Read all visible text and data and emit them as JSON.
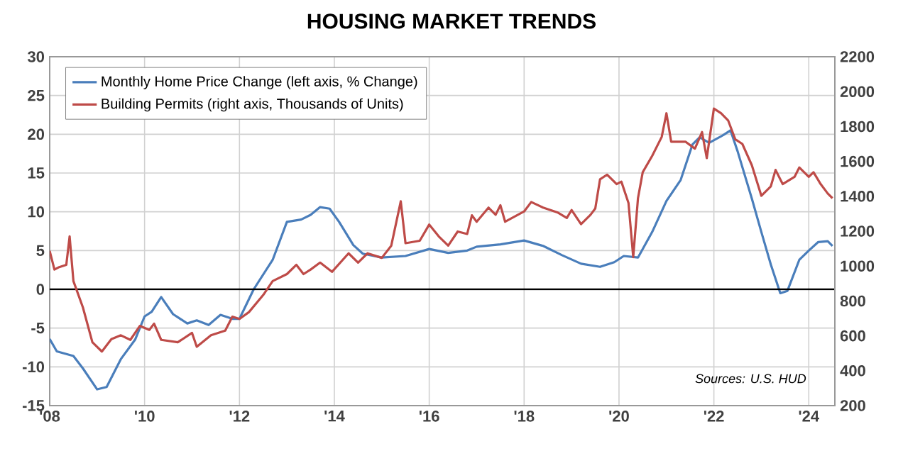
{
  "chart_data": {
    "type": "line",
    "title": "HOUSING MARKET TRENDS",
    "xlim": [
      2008,
      2024.55
    ],
    "xticks": [
      {
        "value": 2008,
        "label": "'08"
      },
      {
        "value": 2010,
        "label": "'10"
      },
      {
        "value": 2012,
        "label": "'12"
      },
      {
        "value": 2014,
        "label": "'14"
      },
      {
        "value": 2016,
        "label": "'16"
      },
      {
        "value": 2018,
        "label": "'18"
      },
      {
        "value": 2020,
        "label": "'20"
      },
      {
        "value": 2022,
        "label": "'22"
      },
      {
        "value": 2024,
        "label": "'24"
      }
    ],
    "ylim": [
      -15,
      30
    ],
    "yticks": [
      -15,
      -10,
      -5,
      0,
      5,
      10,
      15,
      20,
      25,
      30
    ],
    "y2lim": [
      200,
      2200
    ],
    "y2ticks": [
      200,
      400,
      600,
      800,
      1000,
      1200,
      1400,
      1600,
      1800,
      2000,
      2200
    ],
    "grid": true,
    "legend": "top left",
    "ref_lines": [
      {
        "axis": "y",
        "value": 0,
        "color": "#000000"
      }
    ],
    "annotations": [
      "Sources: U.S. HUD"
    ],
    "series": [
      {
        "name": "Monthly Home Price Change (left axis, % Change)",
        "color": "#4a7ebb",
        "x": [
          2008.0,
          2008.15,
          2008.5,
          2008.7,
          2009.0,
          2009.2,
          2009.5,
          2009.8,
          2010.0,
          2010.15,
          2010.35,
          2010.6,
          2010.9,
          2011.1,
          2011.35,
          2011.6,
          2011.85,
          2012.0,
          2012.3,
          2012.7,
          2013.0,
          2013.3,
          2013.5,
          2013.7,
          2013.9,
          2014.1,
          2014.4,
          2014.6,
          2015.0,
          2015.5,
          2016.0,
          2016.4,
          2016.8,
          2017.0,
          2017.5,
          2018.0,
          2018.4,
          2018.8,
          2019.2,
          2019.6,
          2019.9,
          2020.1,
          2020.4,
          2020.7,
          2021.0,
          2021.3,
          2021.55,
          2021.7,
          2021.9,
          2022.2,
          2022.35,
          2022.5,
          2022.8,
          2023.0,
          2023.2,
          2023.4,
          2023.55,
          2023.8,
          2024.0,
          2024.2,
          2024.4,
          2024.5
        ],
        "values": [
          -6.4,
          -8,
          -8.6,
          -10.2,
          -12.9,
          -12.6,
          -9,
          -6.5,
          -3.5,
          -2.9,
          -1,
          -3.2,
          -4.4,
          -4,
          -4.6,
          -3.3,
          -3.8,
          -3.8,
          0,
          3.8,
          8.7,
          9,
          9.6,
          10.6,
          10.4,
          8.7,
          5.7,
          4.6,
          4.1,
          4.3,
          5.2,
          4.7,
          5,
          5.5,
          5.8,
          6.3,
          5.6,
          4.4,
          3.3,
          2.9,
          3.5,
          4.3,
          4.1,
          7.4,
          11.4,
          14.1,
          18.7,
          19.6,
          18.9,
          19.9,
          20.5,
          17.8,
          11.7,
          7.4,
          3.2,
          -0.5,
          -0.2,
          3.8,
          5,
          6.1,
          6.2,
          5.6
        ]
      },
      {
        "name": "Building Permits (right axis, Thousands of Units)",
        "color": "#be4b48",
        "axis": "y2",
        "x": [
          2008.0,
          2008.1,
          2008.2,
          2008.35,
          2008.42,
          2008.5,
          2008.7,
          2008.9,
          2009.1,
          2009.3,
          2009.5,
          2009.7,
          2009.9,
          2010.1,
          2010.2,
          2010.35,
          2010.7,
          2011.0,
          2011.1,
          2011.4,
          2011.7,
          2011.85,
          2012.0,
          2012.2,
          2012.5,
          2012.7,
          2013.0,
          2013.2,
          2013.35,
          2013.5,
          2013.7,
          2013.95,
          2014.3,
          2014.5,
          2014.7,
          2015.0,
          2015.2,
          2015.4,
          2015.5,
          2015.8,
          2016.0,
          2016.2,
          2016.4,
          2016.6,
          2016.8,
          2016.9,
          2017.0,
          2017.25,
          2017.4,
          2017.5,
          2017.6,
          2018.0,
          2018.15,
          2018.4,
          2018.7,
          2018.9,
          2019.0,
          2019.2,
          2019.4,
          2019.5,
          2019.6,
          2019.75,
          2019.95,
          2020.05,
          2020.2,
          2020.3,
          2020.4,
          2020.5,
          2020.7,
          2020.9,
          2021.0,
          2021.1,
          2021.4,
          2021.6,
          2021.75,
          2021.85,
          2022.0,
          2022.15,
          2022.3,
          2022.45,
          2022.6,
          2022.8,
          2023.0,
          2023.2,
          2023.3,
          2023.45,
          2023.7,
          2023.8,
          2024.0,
          2024.1,
          2024.25,
          2024.4,
          2024.5
        ],
        "values": [
          1087,
          980,
          994,
          1007,
          1170,
          914,
          763,
          563,
          510,
          581,
          603,
          577,
          657,
          634,
          670,
          577,
          563,
          617,
          537,
          603,
          630,
          710,
          697,
          736,
          834,
          914,
          954,
          1007,
          954,
          980,
          1020,
          967,
          1073,
          1020,
          1073,
          1047,
          1117,
          1371,
          1131,
          1145,
          1238,
          1170,
          1117,
          1198,
          1184,
          1291,
          1254,
          1335,
          1294,
          1349,
          1254,
          1313,
          1367,
          1335,
          1308,
          1276,
          1321,
          1240,
          1294,
          1330,
          1497,
          1524,
          1470,
          1484,
          1362,
          1051,
          1389,
          1538,
          1632,
          1740,
          1876,
          1713,
          1713,
          1673,
          1768,
          1619,
          1903,
          1876,
          1835,
          1727,
          1700,
          1578,
          1403,
          1457,
          1551,
          1470,
          1511,
          1565,
          1511,
          1538,
          1470,
          1416,
          1389
        ]
      }
    ]
  }
}
